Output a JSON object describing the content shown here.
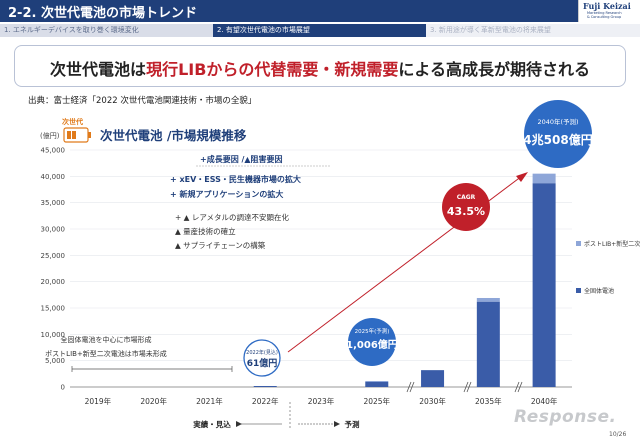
{
  "header": {
    "title": "2-2. 次世代電池の市場トレンド"
  },
  "logo": {
    "name": "Fuji Keizai",
    "line2": "Marketing Research",
    "line3": "& Consulting Group"
  },
  "tabs": [
    {
      "label": "1. エネルギーデバイスを取り巻く環境変化"
    },
    {
      "label": "2. 有望次世代電池の市場展望"
    },
    {
      "label": "3. 新用途が導く革新型電池の将来展望"
    }
  ],
  "banner": {
    "part1": "次世代電池は",
    "part2": "現行LIBからの代替需要・新規需要",
    "part3": "による高成長が期待される"
  },
  "source": "出典：富士経済「2022 次世代電池関連技術・市場の全貌」",
  "chart_title": {
    "badge": "次世代",
    "text": "次世代電池 /市場規模推移"
  },
  "annotations": {
    "factors_header": "+成長要因 /▲阻害要因",
    "pos1": "+  xEV・ESS・民生機器市場の拡大",
    "pos2": "+  新規アプリケーションの拡大",
    "neg1": "+ ▲ レアメタルの調達不安顕在化",
    "neg2": "▲ 量産技術の確立",
    "neg3": "▲ サプライチェーンの構築",
    "note1": "全固体電池を中心に市場形成",
    "note2": "ポストLIB+新型二次電池は市場未形成",
    "bubble_2022_label": "2022年(見込)",
    "bubble_2022_value": "61億円",
    "bubble_2025_label": "2025年(予測)",
    "bubble_2025_value": "1,006億円",
    "cagr_label": "CAGR",
    "cagr_value": "43.5%",
    "b2040_label": "2040年(予測)",
    "b2040_value": "4兆508億円",
    "period_actual": "実績・見込",
    "period_forecast": "予測"
  },
  "page_number": "10/26",
  "watermark": "Response.",
  "colors": {
    "header": "#1f3f7a",
    "bar_main": "#3a5ca8",
    "bar_top": "#8ea6d8",
    "accent_red": "#c0202a",
    "bubble_blue": "#2e6bc4"
  },
  "chart_data": {
    "type": "bar",
    "ylabel": "(億円)",
    "ylim": [
      0,
      45000
    ],
    "yticks": [
      0,
      5000,
      10000,
      15000,
      20000,
      25000,
      30000,
      35000,
      40000,
      45000
    ],
    "ytick_labels": [
      "0",
      "5,000",
      "10,000",
      "15,000",
      "20,000",
      "25,000",
      "30,000",
      "35,000",
      "40,000",
      "45,000"
    ],
    "categories": [
      "2019年",
      "2020年",
      "2021年",
      "2022年",
      "2023年",
      "2025年",
      "2030年",
      "2035年",
      "2040年"
    ],
    "series": [
      {
        "name": "全固体電池",
        "values": [
          0,
          0,
          0,
          61,
          0,
          950,
          3200,
          16200,
          38700
        ]
      },
      {
        "name": "ポストLIB+新型二次電池",
        "values": [
          0,
          0,
          0,
          0,
          0,
          56,
          0,
          700,
          1808
        ]
      }
    ],
    "legend_position": "right",
    "grid": true
  }
}
